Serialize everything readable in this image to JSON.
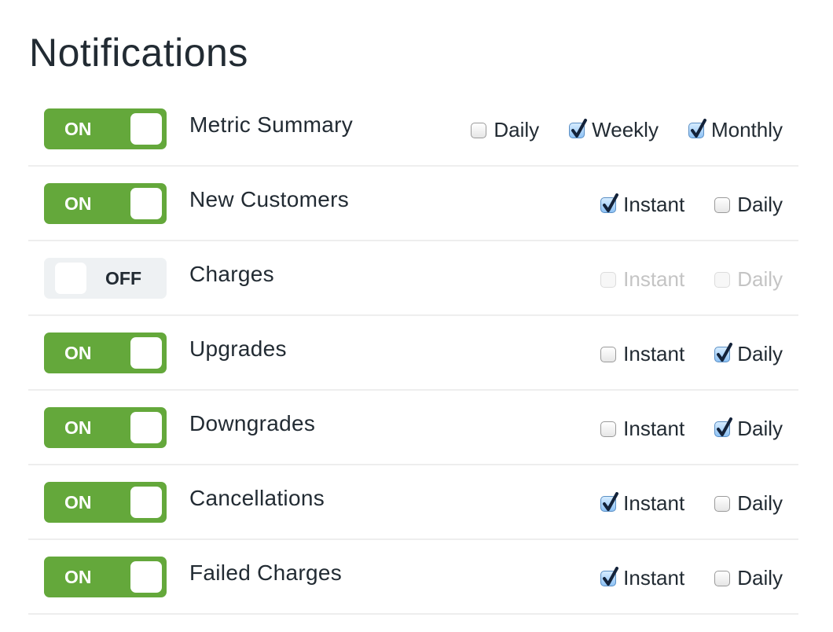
{
  "page": {
    "title": "Notifications"
  },
  "colors": {
    "on": "#64a83b",
    "off": "#eef1f3",
    "text": "#222b33",
    "disabled": "#c4c4c4"
  },
  "rows": [
    {
      "name": "Metric Summary",
      "enabled": true,
      "toggle_label": "ON",
      "options": [
        {
          "label": "Daily",
          "checked": false
        },
        {
          "label": "Weekly",
          "checked": true
        },
        {
          "label": "Monthly",
          "checked": true
        }
      ]
    },
    {
      "name": "New Customers",
      "enabled": true,
      "toggle_label": "ON",
      "options": [
        {
          "label": "Instant",
          "checked": true
        },
        {
          "label": "Daily",
          "checked": false
        }
      ]
    },
    {
      "name": "Charges",
      "enabled": false,
      "toggle_label": "OFF",
      "options": [
        {
          "label": "Instant",
          "checked": false
        },
        {
          "label": "Daily",
          "checked": false
        }
      ]
    },
    {
      "name": "Upgrades",
      "enabled": true,
      "toggle_label": "ON",
      "options": [
        {
          "label": "Instant",
          "checked": false
        },
        {
          "label": "Daily",
          "checked": true
        }
      ]
    },
    {
      "name": "Downgrades",
      "enabled": true,
      "toggle_label": "ON",
      "options": [
        {
          "label": "Instant",
          "checked": false
        },
        {
          "label": "Daily",
          "checked": true
        }
      ]
    },
    {
      "name": "Cancellations",
      "enabled": true,
      "toggle_label": "ON",
      "options": [
        {
          "label": "Instant",
          "checked": true
        },
        {
          "label": "Daily",
          "checked": false
        }
      ]
    },
    {
      "name": "Failed Charges",
      "enabled": true,
      "toggle_label": "ON",
      "options": [
        {
          "label": "Instant",
          "checked": true
        },
        {
          "label": "Daily",
          "checked": false
        }
      ]
    }
  ]
}
